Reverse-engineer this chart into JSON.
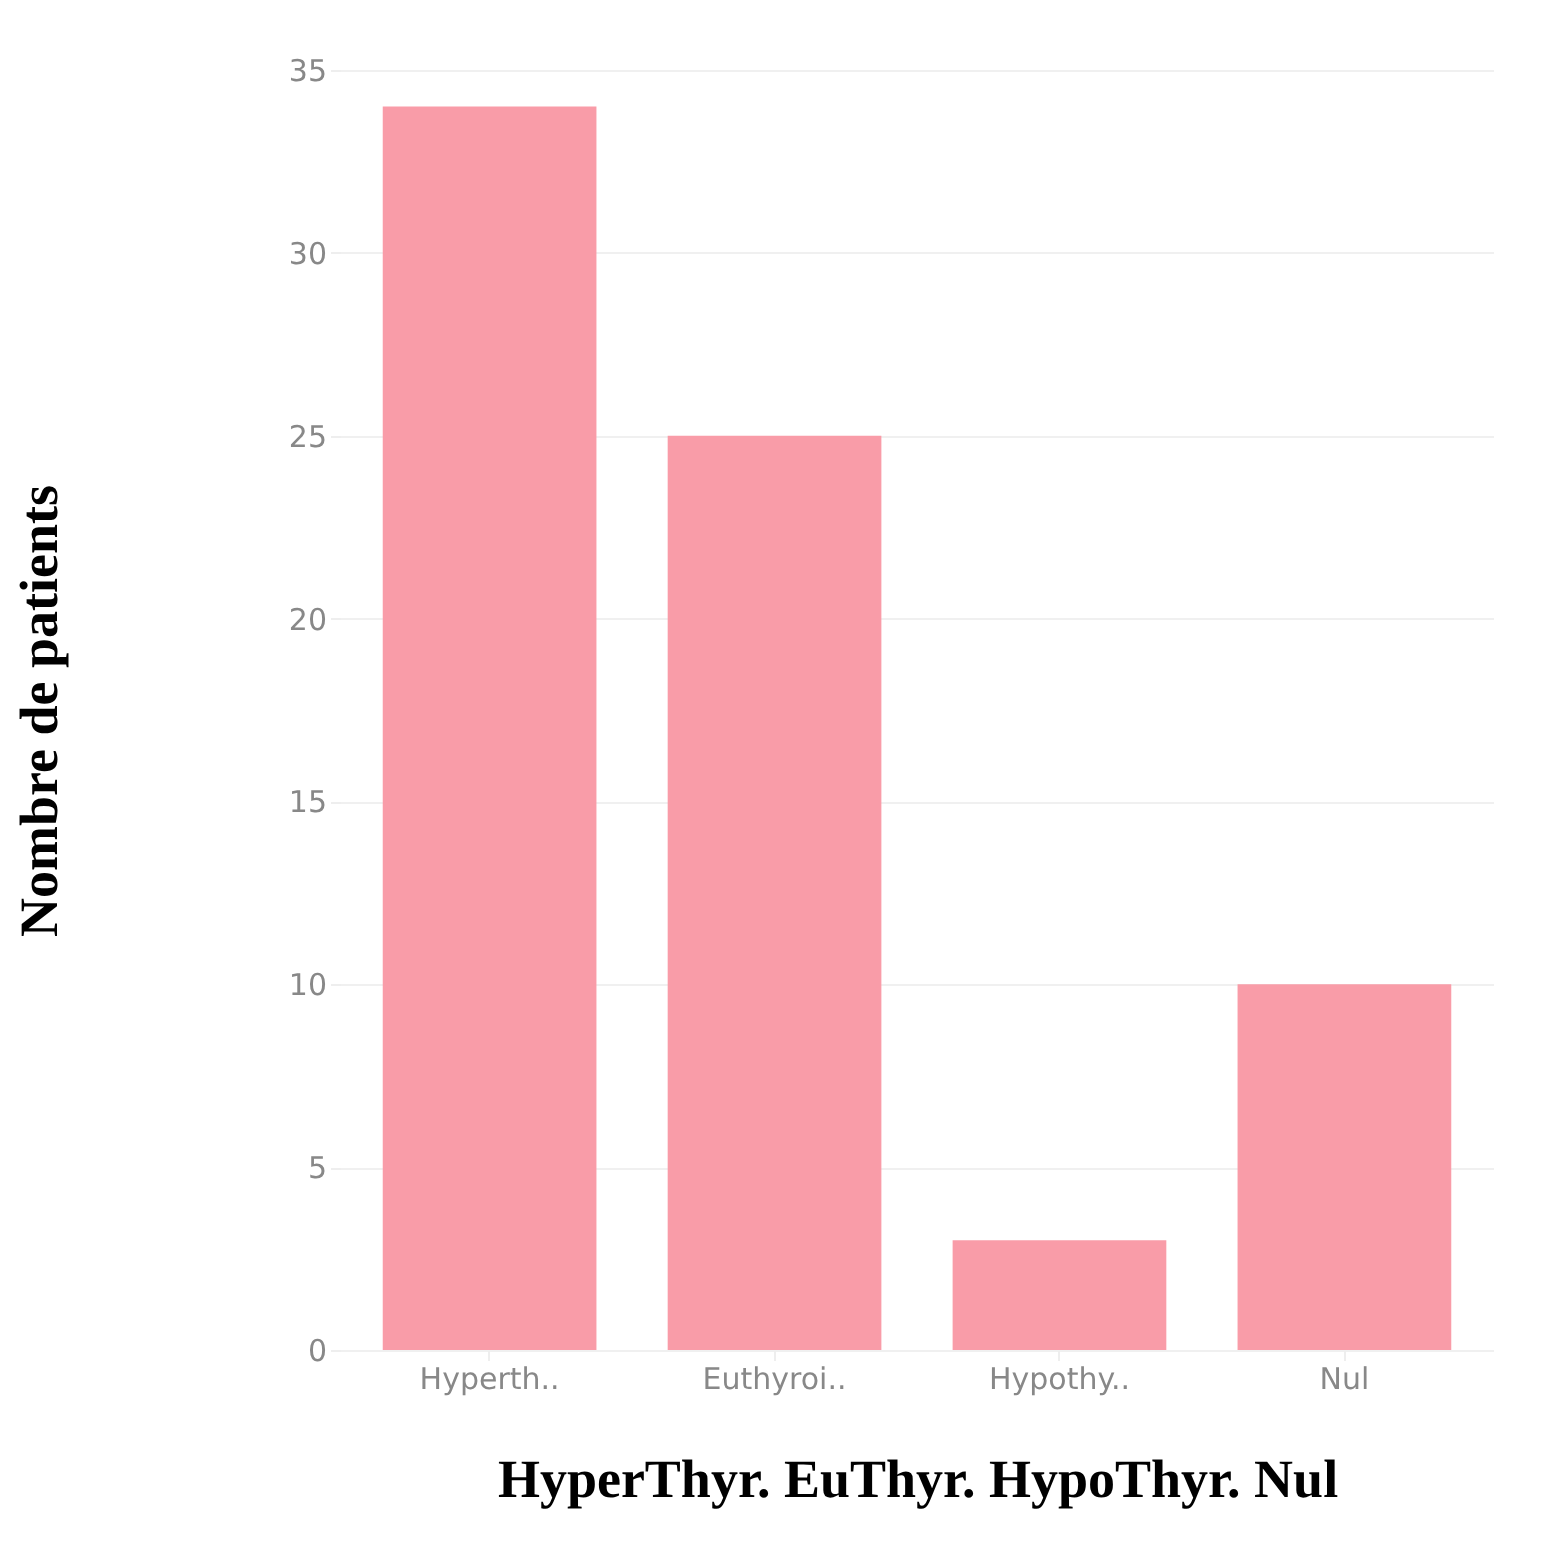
{
  "chart_data": {
    "type": "bar",
    "categories": [
      "Hyperth..",
      "Euthyroi..",
      "Hypothy..",
      "Nul"
    ],
    "values": [
      34,
      25,
      3,
      10
    ],
    "color": "#f99ca8",
    "xlabel": "HyperThyr.  EuThyr.   HypoThyr.  Nul",
    "ylabel": "Nombre de patients",
    "ylim": [
      0,
      35
    ],
    "yticks": [
      0,
      5,
      10,
      15,
      20,
      25,
      30,
      35
    ],
    "grid": "y"
  }
}
